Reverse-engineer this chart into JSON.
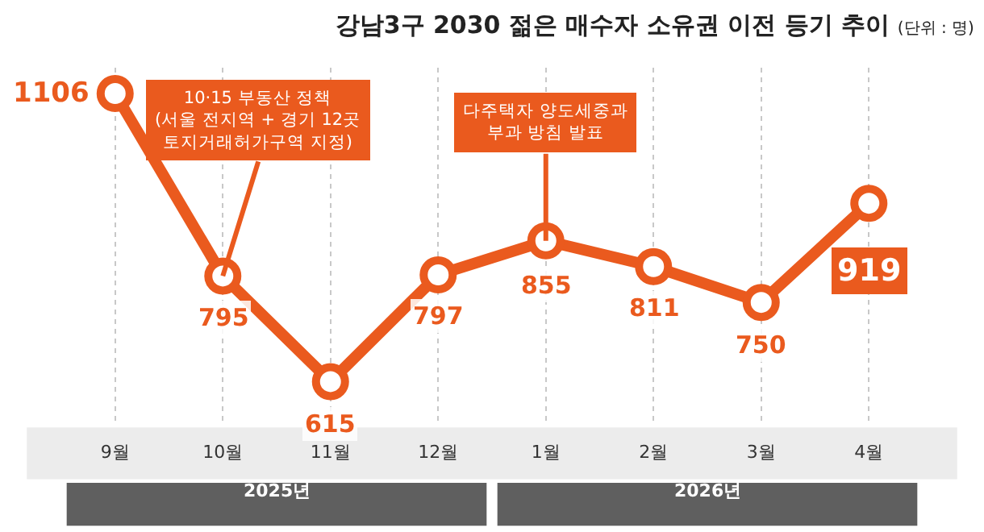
{
  "chart_data": {
    "type": "line",
    "title": "강남3구 2030 젊은 매수자 소유권 이전 등기 추이",
    "subtitle": "(단위 : 명)",
    "categories": [
      "9월",
      "10월",
      "11월",
      "12월",
      "1월",
      "2월",
      "3월",
      "4월"
    ],
    "series": [
      {
        "color": "#ea5a1e",
        "values": [
          1106,
          795,
          615,
          797,
          855,
          811,
          750,
          919
        ]
      }
    ],
    "ylim": [
      540,
      1150
    ],
    "data_labels": true,
    "grid": "x",
    "marker": "circle",
    "line_style": "solid",
    "annotations": [
      {
        "text": "10·15 부동산 정책\n(서울 전지역 + 경기 12곳\n토지거래허가구역 지정)",
        "x": "10월",
        "y": 795
      },
      {
        "text": "다주택자 양도세중과\n부과 방침 발표",
        "x": "1월",
        "y": 855
      },
      "2025년",
      "2026년"
    ]
  }
}
